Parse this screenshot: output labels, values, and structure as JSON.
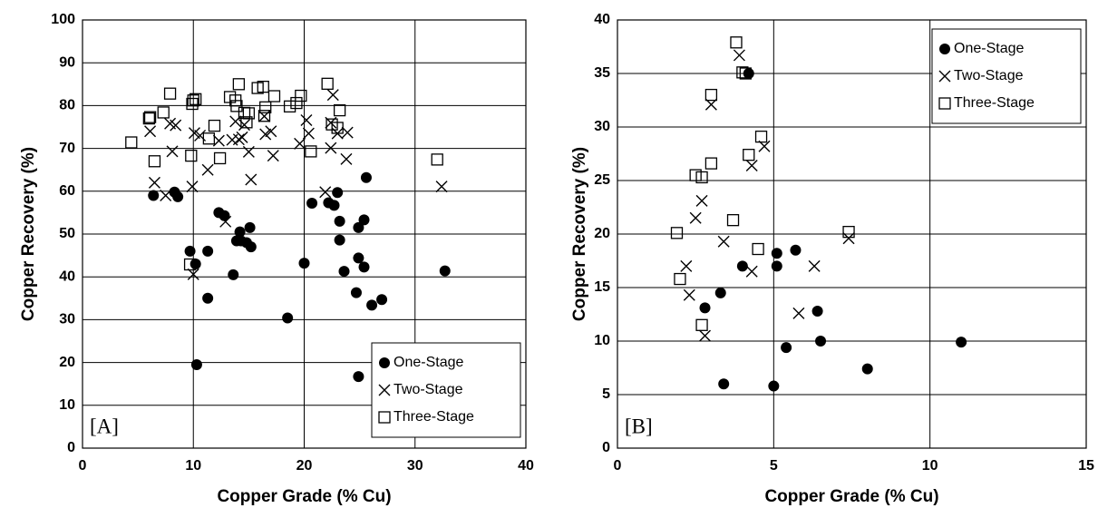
{
  "chart_data": [
    {
      "type": "scatter",
      "xlabel": "Copper Grade (% Cu)",
      "ylabel": "Copper Recovery (%)",
      "annotation": "[A]",
      "xlim": [
        0,
        40
      ],
      "ylim": [
        0,
        100
      ],
      "xticks": [
        0,
        10,
        20,
        30,
        40
      ],
      "yticks": [
        0,
        10,
        20,
        30,
        40,
        50,
        60,
        70,
        80,
        90,
        100
      ],
      "grid": true,
      "legend": "lower right",
      "series": [
        {
          "name": "One-Stage",
          "marker": "circle",
          "color": "#000000",
          "x": [
            6.4,
            8.3,
            8.6,
            9.7,
            10.2,
            10.3,
            11.3,
            11.3,
            12.3,
            12.8,
            13.6,
            13.9,
            14.2,
            14.3,
            14.8,
            15.1,
            15.2,
            18.5,
            20.0,
            20.7,
            22.2,
            22.7,
            23.0,
            23.2,
            23.2,
            23.6,
            24.7,
            24.9,
            24.9,
            25.4,
            25.4,
            25.6,
            24.9,
            26.1,
            27.0,
            32.7
          ],
          "values": [
            59,
            59.8,
            58.7,
            46,
            43,
            19.5,
            35,
            46,
            55,
            54.3,
            40.5,
            48.4,
            50.5,
            48.4,
            48,
            51.5,
            47,
            30.4,
            43.2,
            57.2,
            57.3,
            56.7,
            59.7,
            53,
            48.6,
            41.3,
            36.3,
            44.4,
            51.5,
            53.3,
            42.3,
            63.2,
            16.7,
            33.4,
            34.7,
            41.4
          ]
        },
        {
          "name": "Two-Stage",
          "marker": "cross",
          "color": "#000000",
          "x": [
            6.1,
            6.5,
            7.5,
            7.9,
            8.1,
            8.4,
            9.9,
            10.0,
            10.1,
            10.6,
            11.3,
            12.3,
            12.9,
            13.5,
            13.8,
            14.1,
            14.4,
            14.6,
            15.0,
            15.2,
            16.4,
            16.5,
            17.0,
            17.2,
            19.6,
            20.2,
            20.4,
            21.9,
            22.4,
            22.6,
            22.4,
            23.0,
            23.8,
            23.9,
            32.4
          ],
          "values": [
            74,
            62,
            59,
            75.8,
            69.3,
            75.4,
            61.1,
            40.6,
            73.6,
            73,
            65,
            71.8,
            52.9,
            72,
            76.3,
            72.1,
            72.6,
            75.5,
            69.2,
            62.7,
            77.5,
            73.3,
            74,
            68.3,
            71.1,
            76.6,
            73.5,
            59.8,
            76,
            82.5,
            70.1,
            73.5,
            67.5,
            73.7,
            61.1
          ]
        },
        {
          "name": "Three-Stage",
          "marker": "square",
          "color": "#000000",
          "x": [
            4.4,
            6.0,
            6.1,
            6.5,
            7.3,
            7.9,
            9.7,
            9.8,
            9.9,
            10.0,
            10.2,
            11.4,
            11.9,
            12.4,
            13.3,
            13.8,
            13.9,
            14.1,
            14.6,
            14.8,
            15.0,
            15.8,
            16.3,
            16.4,
            16.5,
            17.3,
            18.7,
            19.3,
            19.7,
            20.6,
            22.1,
            22.5,
            23.2,
            23.0,
            32.0
          ],
          "values": [
            71.4,
            77,
            77.3,
            67,
            78.4,
            82.8,
            42.9,
            68.3,
            80.4,
            81.2,
            81.5,
            72.3,
            75.3,
            67.7,
            82,
            81.2,
            79.9,
            85,
            78.3,
            76.1,
            78.2,
            84.1,
            84.4,
            77.6,
            79.6,
            82.2,
            79.8,
            80.6,
            82.3,
            69.3,
            85.1,
            75.6,
            78.9,
            74.8,
            67.4
          ]
        }
      ]
    },
    {
      "type": "scatter",
      "xlabel": "Copper Grade (% Cu)",
      "ylabel": "Copper Recovery (%)",
      "annotation": "[B]",
      "xlim": [
        0,
        15
      ],
      "ylim": [
        0,
        40
      ],
      "xticks": [
        0,
        5,
        10,
        15
      ],
      "yticks": [
        0,
        5,
        10,
        15,
        20,
        25,
        30,
        35,
        40
      ],
      "grid": true,
      "legend": "upper right",
      "series": [
        {
          "name": "One-Stage",
          "marker": "circle",
          "color": "#000000",
          "x": [
            3.4,
            2.8,
            3.3,
            4.0,
            4.2,
            5.0,
            5.1,
            5.1,
            5.4,
            5.7,
            6.4,
            6.5,
            8.0,
            11.0
          ],
          "values": [
            6,
            13.1,
            14.5,
            17,
            35,
            5.8,
            17,
            18.2,
            9.4,
            18.5,
            12.8,
            10,
            7.4,
            9.9
          ]
        },
        {
          "name": "Two-Stage",
          "marker": "cross",
          "color": "#000000",
          "x": [
            2.2,
            2.3,
            2.5,
            2.7,
            2.8,
            3.0,
            3.4,
            3.9,
            4.3,
            4.3,
            4.7,
            5.8,
            6.3,
            7.4
          ],
          "values": [
            17,
            14.3,
            21.5,
            23.1,
            10.5,
            32.1,
            19.3,
            36.7,
            26.4,
            16.5,
            28.2,
            12.6,
            17,
            19.6
          ]
        },
        {
          "name": "Three-Stage",
          "marker": "square",
          "color": "#000000",
          "x": [
            1.9,
            2.0,
            2.5,
            2.7,
            2.7,
            3.0,
            3.0,
            3.7,
            3.8,
            4.0,
            4.1,
            4.2,
            4.5,
            4.6,
            7.4
          ],
          "values": [
            20.1,
            15.8,
            25.5,
            25.3,
            11.5,
            26.6,
            33,
            21.3,
            37.9,
            35.1,
            35,
            27.4,
            18.6,
            29.1,
            20.2
          ]
        }
      ]
    }
  ]
}
